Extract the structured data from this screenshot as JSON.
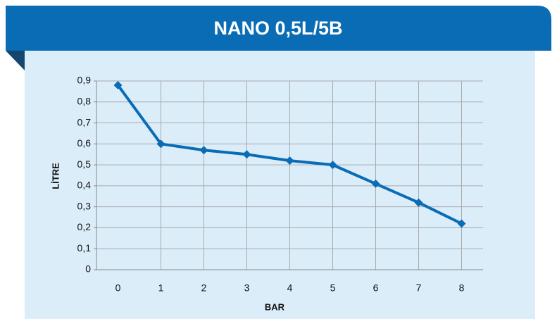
{
  "chart_data": {
    "type": "line",
    "title": "NANO 0,5L/5B",
    "x_label": "BAR",
    "y_label": "LİTRE",
    "x": [
      0,
      1,
      2,
      3,
      4,
      5,
      6,
      7,
      8
    ],
    "series": [
      {
        "name": "NANO 0,5L/5B",
        "color": "#0b6cb6",
        "values": [
          0.88,
          0.6,
          0.57,
          0.55,
          0.52,
          0.5,
          0.41,
          0.32,
          0.22
        ]
      }
    ],
    "xlim": [
      -0.5,
      8.5
    ],
    "xticks": [
      0,
      1,
      2,
      3,
      4,
      5,
      6,
      7,
      8
    ],
    "ylim": [
      0,
      0.9
    ],
    "yticks": [
      0,
      {
        "value": 0.1,
        "label": "0,1"
      },
      {
        "value": 0.2,
        "label": "0,2"
      },
      {
        "value": 0.3,
        "label": "0,3"
      },
      {
        "value": 0.4,
        "label": "0,4"
      },
      {
        "value": 0.5,
        "label": "0,5"
      },
      {
        "value": 0.6,
        "label": "0,6"
      },
      {
        "value": 0.7,
        "label": "0,7"
      },
      {
        "value": 0.8,
        "label": "0,8"
      },
      {
        "value": 0.9,
        "label": "0,9"
      }
    ],
    "grid": true
  }
}
